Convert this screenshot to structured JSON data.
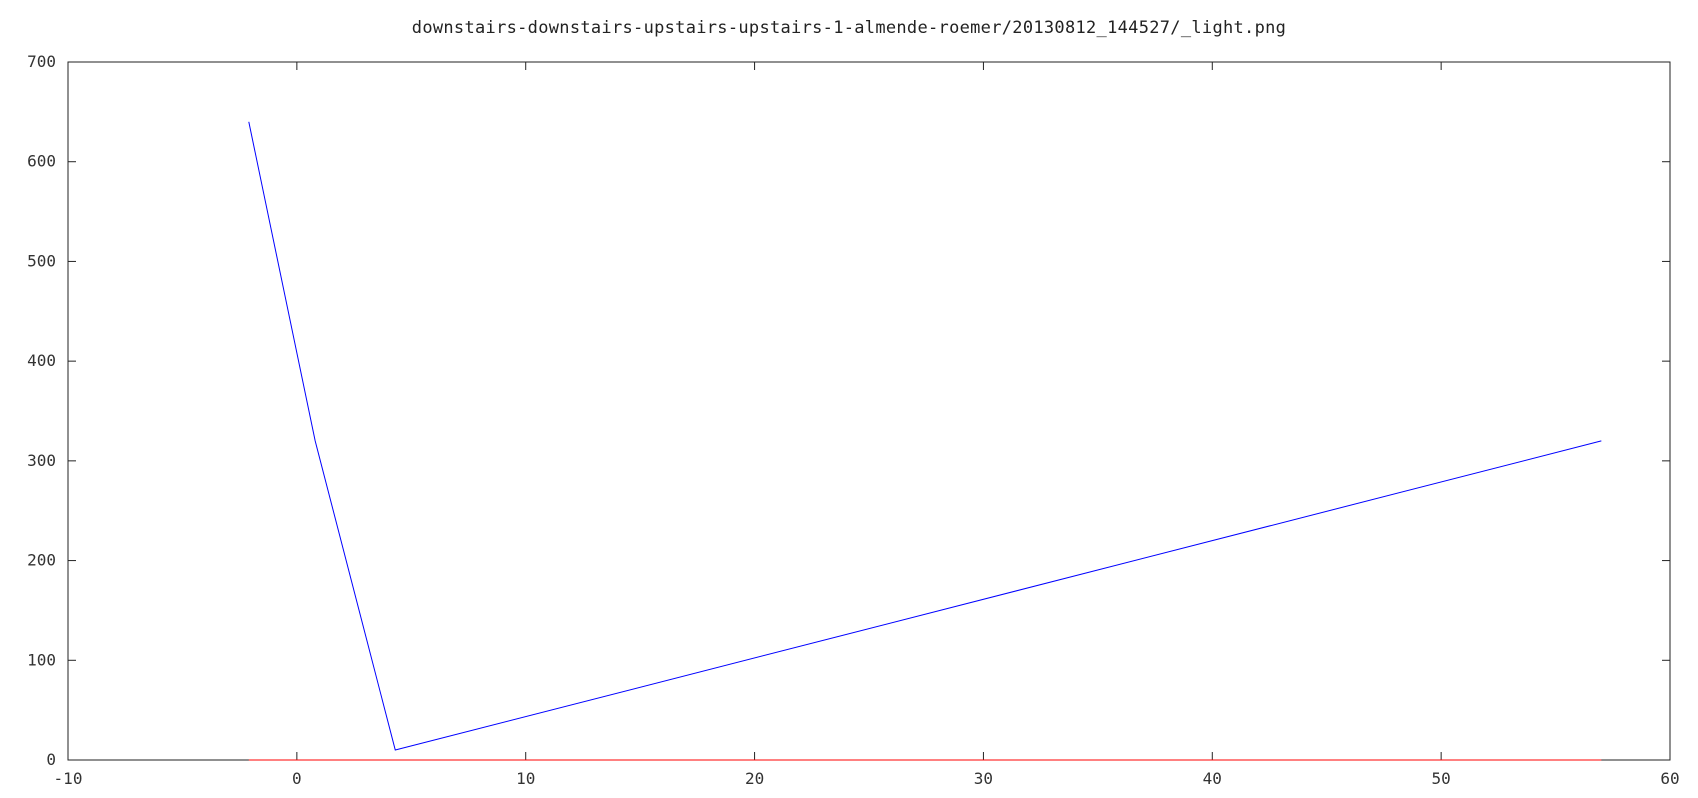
{
  "chart_data": {
    "type": "line",
    "title": "downstairs-downstairs-upstairs-upstairs-1-almende-roemer/20130812_144527/_light.png",
    "xlabel": "",
    "ylabel": "",
    "xlim": [
      -10,
      60
    ],
    "ylim": [
      0,
      700
    ],
    "xticks": [
      -10,
      0,
      10,
      20,
      30,
      40,
      50,
      60
    ],
    "yticks": [
      0,
      100,
      200,
      300,
      400,
      500,
      600,
      700
    ],
    "grid": false,
    "series": [
      {
        "color": "#0000ff",
        "x": [
          -2.1,
          0.8,
          4.3,
          57.0
        ],
        "y": [
          640,
          320,
          10,
          320
        ]
      },
      {
        "color": "#ff0000",
        "x": [
          -2.1,
          57.0
        ],
        "y": [
          0,
          0
        ]
      }
    ]
  }
}
